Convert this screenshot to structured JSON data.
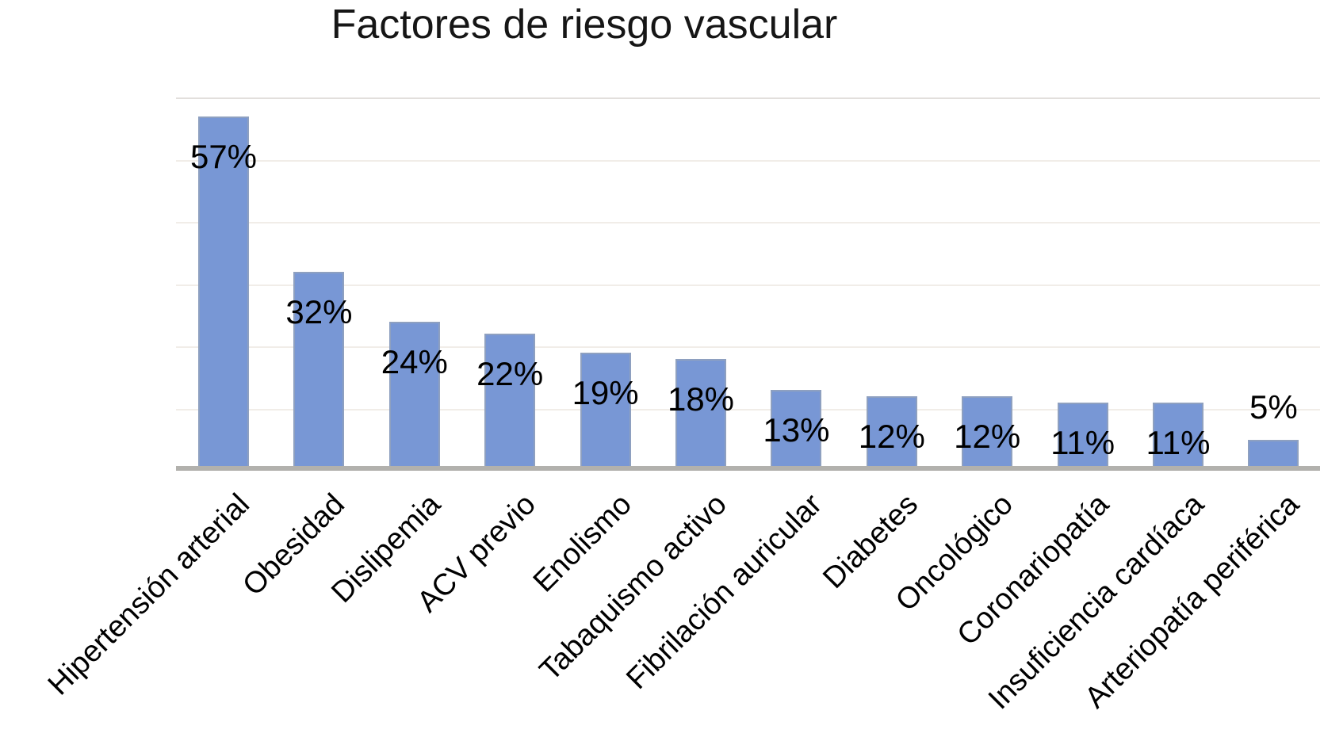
{
  "title": "Factores de riesgo vascular",
  "chart_data": {
    "type": "bar",
    "title": "Factores de riesgo vascular",
    "categories": [
      "Hipertensión arterial",
      "Obesidad",
      "Dislipemia",
      "ACV previo",
      "Enolismo",
      "Tabaquismo activo",
      "Fibrilación auricular",
      "Diabetes",
      "Oncológico",
      "Coronariopatía",
      "Insuficiencia cardíaca",
      "Arteriopatía periférica"
    ],
    "values": [
      57,
      32,
      24,
      22,
      19,
      18,
      13,
      12,
      12,
      11,
      11,
      5
    ],
    "data_labels": [
      "57%",
      "32%",
      "24%",
      "22%",
      "19%",
      "18%",
      "13%",
      "12%",
      "12%",
      "11%",
      "11%",
      "5%"
    ],
    "xlabel": "",
    "ylabel": "",
    "ylim": [
      0,
      60
    ],
    "grid": true,
    "grid_step": 10,
    "legend": false,
    "colors": {
      "bar_fill": "#7897d5",
      "bar_border": "#8ea0c0",
      "baseline": "#b2b1ad",
      "gridline": "#f1ede8",
      "gridline_top": "#e2dfdc",
      "text": "#000000",
      "background": "#ffffff"
    }
  }
}
